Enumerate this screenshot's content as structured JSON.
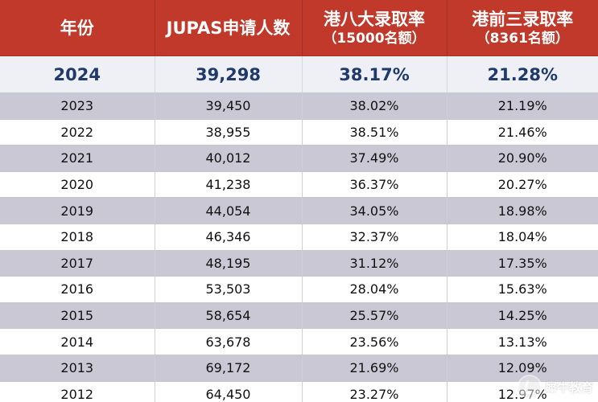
{
  "table": {
    "headers": {
      "year": "年份",
      "applicants": "JUPAS申请人数",
      "hk8_line1": "港八大录取率",
      "hk8_line2": "（15000名额）",
      "top3_line1": "港前三录取率",
      "top3_line2": "（8361名额）"
    },
    "highlight": {
      "year": "2024",
      "applicants": "39,298",
      "hk8": "38.17%",
      "top3": "21.28%"
    },
    "rows": [
      {
        "year": "2023",
        "applicants": "39,450",
        "hk8": "38.02%",
        "top3": "21.19%"
      },
      {
        "year": "2022",
        "applicants": "38,955",
        "hk8": "38.51%",
        "top3": "21.46%"
      },
      {
        "year": "2021",
        "applicants": "40,012",
        "hk8": "37.49%",
        "top3": "20.90%"
      },
      {
        "year": "2020",
        "applicants": "41,238",
        "hk8": "36.37%",
        "top3": "20.27%"
      },
      {
        "year": "2019",
        "applicants": "44,054",
        "hk8": "34.05%",
        "top3": "18.98%"
      },
      {
        "year": "2018",
        "applicants": "46,346",
        "hk8": "32.37%",
        "top3": "18.04%"
      },
      {
        "year": "2017",
        "applicants": "48,195",
        "hk8": "31.12%",
        "top3": "17.35%"
      },
      {
        "year": "2016",
        "applicants": "53,503",
        "hk8": "28.04%",
        "top3": "15.63%"
      },
      {
        "year": "2015",
        "applicants": "58,654",
        "hk8": "25.57%",
        "top3": "14.25%"
      },
      {
        "year": "2014",
        "applicants": "63,678",
        "hk8": "23.56%",
        "top3": "13.13%"
      },
      {
        "year": "2013",
        "applicants": "69,172",
        "hk8": "21.69%",
        "top3": "12.09%"
      },
      {
        "year": "2012",
        "applicants": "64,450",
        "hk8": "23.27%",
        "top3": "12.97%"
      }
    ]
  },
  "watermark": {
    "text": "犀牛教育",
    "icon": "rhino-logo-icon"
  }
}
